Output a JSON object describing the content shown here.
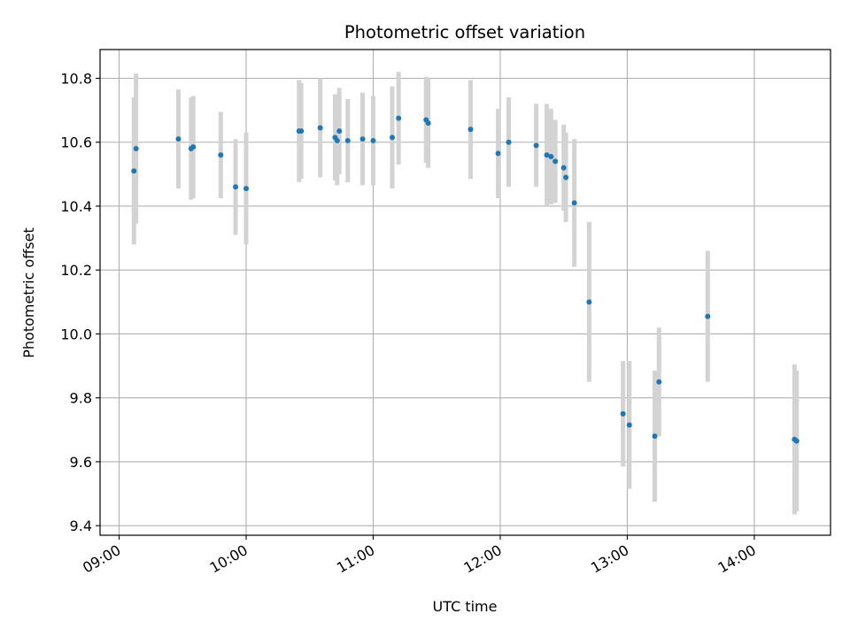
{
  "chart_data": {
    "type": "scatter",
    "title": "Photometric offset variation",
    "xlabel": "UTC time",
    "ylabel": "Photometric offset",
    "x_unit": "UTC time (HH:MM)",
    "xlim": [
      "08:51",
      "14:36"
    ],
    "ylim": [
      9.37,
      10.89
    ],
    "xticks": [
      "09:00",
      "10:00",
      "11:00",
      "12:00",
      "13:00",
      "14:00"
    ],
    "yticks": [
      "9.4",
      "9.6",
      "9.8",
      "10.0",
      "10.2",
      "10.4",
      "10.6",
      "10.8"
    ],
    "grid": true,
    "marker_color": "#1f77b4",
    "errorbar_color": "#d3d3d3",
    "series": [
      {
        "points": [
          {
            "t": "09:07",
            "y": 10.51,
            "err": 0.23
          },
          {
            "t": "09:08",
            "y": 10.58,
            "err": 0.235
          },
          {
            "t": "09:28",
            "y": 10.61,
            "err": 0.155
          },
          {
            "t": "09:34",
            "y": 10.58,
            "err": 0.16
          },
          {
            "t": "09:35",
            "y": 10.585,
            "err": 0.16
          },
          {
            "t": "09:48",
            "y": 10.56,
            "err": 0.135
          },
          {
            "t": "09:55",
            "y": 10.46,
            "err": 0.15
          },
          {
            "t": "10:00",
            "y": 10.455,
            "err": 0.175
          },
          {
            "t": "10:25",
            "y": 10.635,
            "err": 0.16
          },
          {
            "t": "10:26",
            "y": 10.635,
            "err": 0.15
          },
          {
            "t": "10:35",
            "y": 10.645,
            "err": 0.155
          },
          {
            "t": "10:42",
            "y": 10.615,
            "err": 0.135
          },
          {
            "t": "10:43",
            "y": 10.605,
            "err": 0.14
          },
          {
            "t": "10:44",
            "y": 10.635,
            "err": 0.135
          },
          {
            "t": "10:48",
            "y": 10.605,
            "err": 0.13
          },
          {
            "t": "10:55",
            "y": 10.61,
            "err": 0.145
          },
          {
            "t": "11:00",
            "y": 10.605,
            "err": 0.14
          },
          {
            "t": "11:09",
            "y": 10.615,
            "err": 0.16
          },
          {
            "t": "11:12",
            "y": 10.675,
            "err": 0.145
          },
          {
            "t": "11:25",
            "y": 10.67,
            "err": 0.135
          },
          {
            "t": "11:26",
            "y": 10.66,
            "err": 0.14
          },
          {
            "t": "11:46",
            "y": 10.64,
            "err": 0.155
          },
          {
            "t": "11:59",
            "y": 10.565,
            "err": 0.14
          },
          {
            "t": "12:04",
            "y": 10.6,
            "err": 0.14
          },
          {
            "t": "12:17",
            "y": 10.59,
            "err": 0.13
          },
          {
            "t": "12:22",
            "y": 10.56,
            "err": 0.16
          },
          {
            "t": "12:24",
            "y": 10.555,
            "err": 0.15
          },
          {
            "t": "12:26",
            "y": 10.54,
            "err": 0.13
          },
          {
            "t": "12:30",
            "y": 10.52,
            "err": 0.135
          },
          {
            "t": "12:31",
            "y": 10.49,
            "err": 0.14
          },
          {
            "t": "12:35",
            "y": 10.41,
            "err": 0.2
          },
          {
            "t": "12:42",
            "y": 10.1,
            "err": 0.25
          },
          {
            "t": "12:58",
            "y": 9.75,
            "err": 0.165
          },
          {
            "t": "13:01",
            "y": 9.715,
            "err": 0.2
          },
          {
            "t": "13:13",
            "y": 9.68,
            "err": 0.205
          },
          {
            "t": "13:15",
            "y": 9.85,
            "err": 0.17
          },
          {
            "t": "13:38",
            "y": 10.055,
            "err": 0.205
          },
          {
            "t": "14:19",
            "y": 9.67,
            "err": 0.235
          },
          {
            "t": "14:20",
            "y": 9.665,
            "err": 0.22
          }
        ]
      }
    ]
  }
}
